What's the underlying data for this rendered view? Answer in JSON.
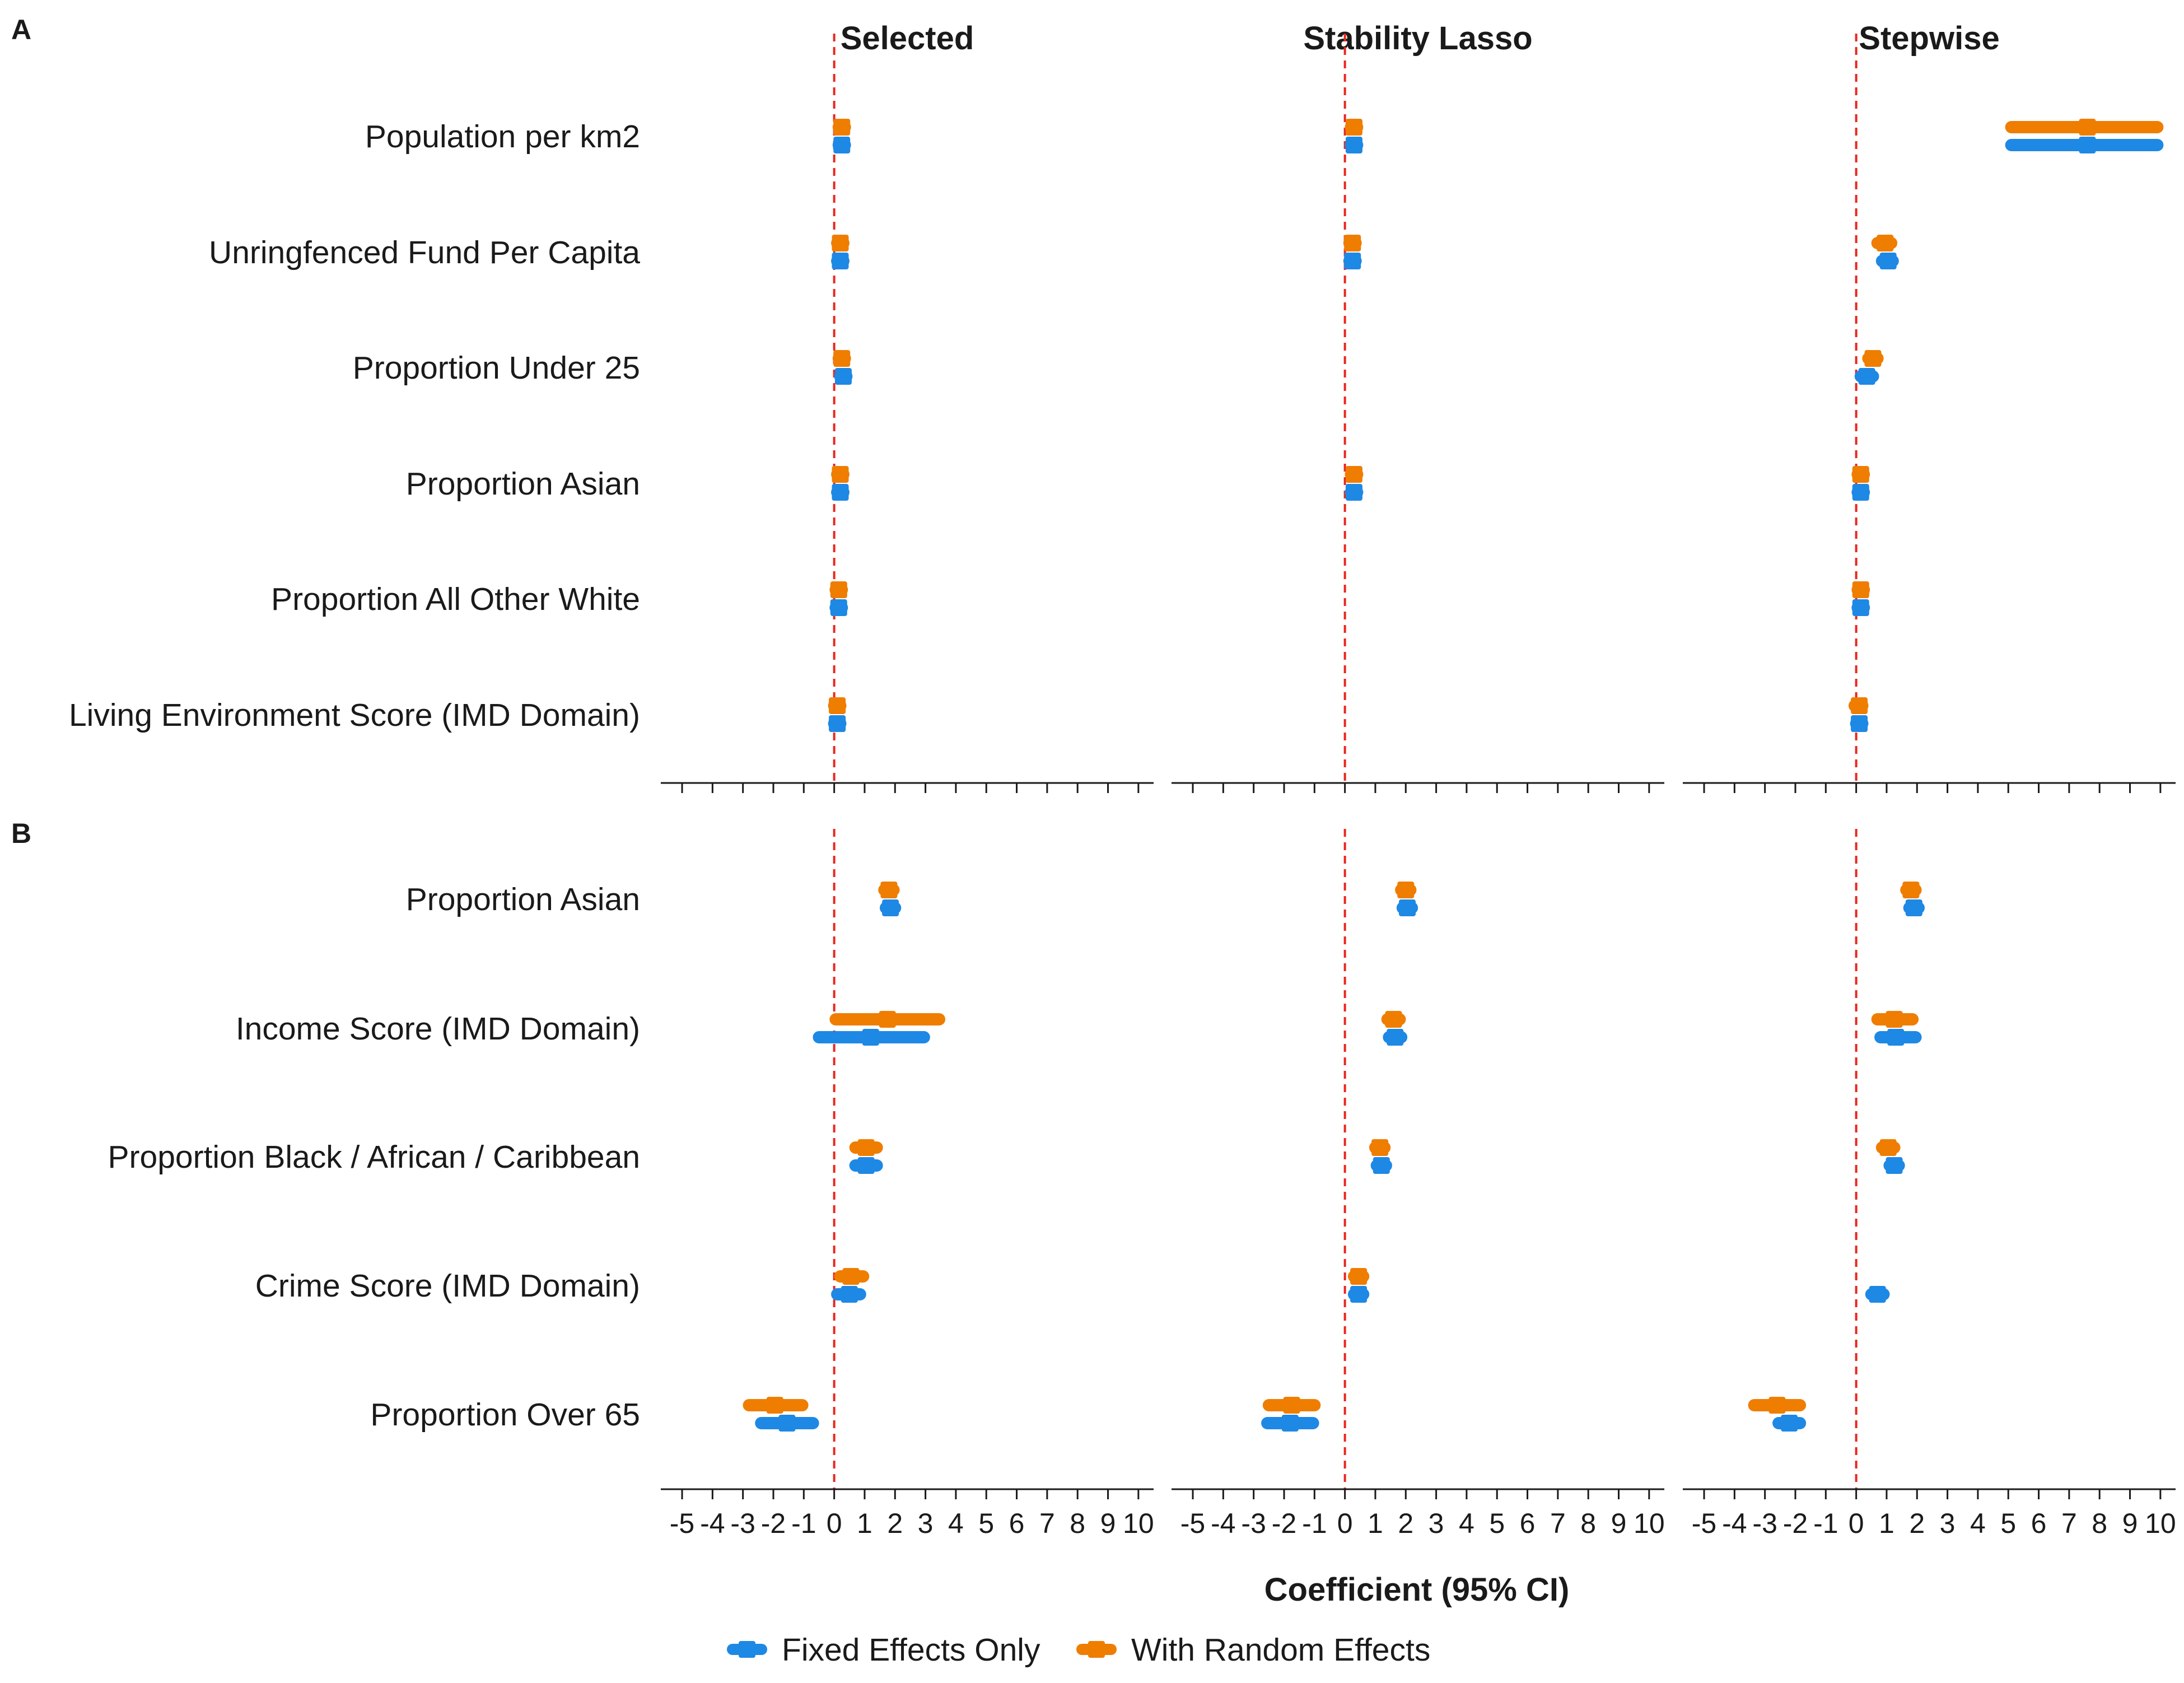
{
  "chart_data": {
    "type": "forest",
    "title": "",
    "xlabel": "Coefficient (95% CI)",
    "xlim": [
      -5.7,
      10.5
    ],
    "x_ticks": [
      -5,
      -4,
      -3,
      -2,
      -1,
      0,
      1,
      2,
      3,
      4,
      5,
      6,
      7,
      8,
      9,
      10
    ],
    "x_tick_labels": [
      "-5",
      "-4",
      "-3",
      "-2",
      "-1",
      "0",
      "1",
      "2",
      "3",
      "4",
      "5",
      "6",
      "7",
      "8",
      "9",
      "10"
    ],
    "reference_line": 0,
    "columns": [
      "Selected",
      "Stability Lasso",
      "Stepwise"
    ],
    "series": [
      {
        "key": "fixed",
        "name": "Fixed Effects Only",
        "color": "#1e88e5"
      },
      {
        "key": "random",
        "name": "With Random Effects",
        "color": "#ef7d00"
      }
    ],
    "panels": [
      {
        "tag": "A",
        "rows": [
          {
            "label": "Population per km2",
            "values": {
              "Selected": {
                "fixed": [
                  0.25,
                  0.15,
                  0.35
                ],
                "random": [
                  0.25,
                  0.15,
                  0.35
                ]
              },
              "Stability Lasso": {
                "fixed": [
                  0.3,
                  0.2,
                  0.4
                ],
                "random": [
                  0.3,
                  0.2,
                  0.4
                ]
              },
              "Stepwise": {
                "fixed": [
                  7.6,
                  5.1,
                  9.9
                ],
                "random": [
                  7.6,
                  5.1,
                  9.9
                ]
              }
            }
          },
          {
            "label": "Unringfenced Fund Per Capita",
            "values": {
              "Selected": {
                "fixed": [
                  0.2,
                  0.1,
                  0.3
                ],
                "random": [
                  0.2,
                  0.1,
                  0.3
                ]
              },
              "Stability Lasso": {
                "fixed": [
                  0.25,
                  0.15,
                  0.35
                ],
                "random": [
                  0.25,
                  0.15,
                  0.35
                ]
              },
              "Stepwise": {
                "fixed": [
                  1.05,
                  0.85,
                  1.2
                ],
                "random": [
                  0.95,
                  0.7,
                  1.15
                ]
              }
            }
          },
          {
            "label": "Proportion Under 25",
            "values": {
              "Selected": {
                "fixed": [
                  0.3,
                  0.2,
                  0.4
                ],
                "random": [
                  0.25,
                  0.15,
                  0.35
                ]
              },
              "Stability Lasso": {
                "fixed": null,
                "random": null
              },
              "Stepwise": {
                "fixed": [
                  0.35,
                  0.15,
                  0.55
                ],
                "random": [
                  0.55,
                  0.4,
                  0.7
                ]
              }
            }
          },
          {
            "label": "Proportion Asian",
            "values": {
              "Selected": {
                "fixed": [
                  0.2,
                  0.1,
                  0.3
                ],
                "random": [
                  0.2,
                  0.1,
                  0.3
                ]
              },
              "Stability Lasso": {
                "fixed": [
                  0.3,
                  0.2,
                  0.4
                ],
                "random": [
                  0.3,
                  0.2,
                  0.4
                ]
              },
              "Stepwise": {
                "fixed": [
                  0.15,
                  0.05,
                  0.25
                ],
                "random": [
                  0.15,
                  0.05,
                  0.25
                ]
              }
            }
          },
          {
            "label": "Proportion All Other White",
            "values": {
              "Selected": {
                "fixed": [
                  0.15,
                  0.05,
                  0.25
                ],
                "random": [
                  0.15,
                  0.05,
                  0.25
                ]
              },
              "Stability Lasso": {
                "fixed": null,
                "random": null
              },
              "Stepwise": {
                "fixed": [
                  0.15,
                  0.05,
                  0.25
                ],
                "random": [
                  0.15,
                  0.05,
                  0.25
                ]
              }
            }
          },
          {
            "label": "Living Environment Score (IMD Domain)",
            "values": {
              "Selected": {
                "fixed": [
                  0.1,
                  0.0,
                  0.2
                ],
                "random": [
                  0.1,
                  0.0,
                  0.2
                ]
              },
              "Stability Lasso": {
                "fixed": null,
                "random": null
              },
              "Stepwise": {
                "fixed": [
                  0.1,
                  0.0,
                  0.2
                ],
                "random": [
                  0.1,
                  -0.05,
                  0.2
                ]
              }
            }
          }
        ]
      },
      {
        "tag": "B",
        "rows": [
          {
            "label": "Proportion Asian",
            "values": {
              "Selected": {
                "fixed": [
                  1.85,
                  1.7,
                  2.0
                ],
                "random": [
                  1.8,
                  1.65,
                  1.95
                ]
              },
              "Stability Lasso": {
                "fixed": [
                  2.05,
                  1.9,
                  2.2
                ],
                "random": [
                  2.0,
                  1.85,
                  2.15
                ]
              },
              "Stepwise": {
                "fixed": [
                  1.9,
                  1.75,
                  2.05
                ],
                "random": [
                  1.8,
                  1.65,
                  1.95
                ]
              }
            }
          },
          {
            "label": "Income Score (IMD Domain)",
            "values": {
              "Selected": {
                "fixed": [
                  1.2,
                  -0.5,
                  2.95
                ],
                "random": [
                  1.75,
                  0.05,
                  3.45
                ]
              },
              "Stability Lasso": {
                "fixed": [
                  1.65,
                  1.45,
                  1.85
                ],
                "random": [
                  1.6,
                  1.4,
                  1.8
                ]
              },
              "Stepwise": {
                "fixed": [
                  1.3,
                  0.8,
                  1.95
                ],
                "random": [
                  1.25,
                  0.7,
                  1.85
                ]
              }
            }
          },
          {
            "label": "Proportion Black / African / Caribbean",
            "values": {
              "Selected": {
                "fixed": [
                  1.05,
                  0.7,
                  1.4
                ],
                "random": [
                  1.05,
                  0.7,
                  1.4
                ]
              },
              "Stability Lasso": {
                "fixed": [
                  1.2,
                  1.05,
                  1.35
                ],
                "random": [
                  1.15,
                  1.0,
                  1.3
                ]
              },
              "Stepwise": {
                "fixed": [
                  1.25,
                  1.1,
                  1.4
                ],
                "random": [
                  1.05,
                  0.85,
                  1.25
                ]
              }
            }
          },
          {
            "label": "Crime Score (IMD Domain)",
            "values": {
              "Selected": {
                "fixed": [
                  0.5,
                  0.1,
                  0.85
                ],
                "random": [
                  0.55,
                  0.2,
                  0.95
                ]
              },
              "Stability Lasso": {
                "fixed": [
                  0.45,
                  0.3,
                  0.6
                ],
                "random": [
                  0.45,
                  0.3,
                  0.6
                ]
              },
              "Stepwise": {
                "fixed": [
                  0.7,
                  0.5,
                  0.9
                ],
                "random": null
              }
            }
          },
          {
            "label": "Proportion Over 65",
            "values": {
              "Selected": {
                "fixed": [
                  -1.55,
                  -2.4,
                  -0.7
                ],
                "random": [
                  -1.95,
                  -2.8,
                  -1.05
                ]
              },
              "Stability Lasso": {
                "fixed": [
                  -1.8,
                  -2.55,
                  -1.05
                ],
                "random": [
                  -1.75,
                  -2.5,
                  -1.0
                ]
              },
              "Stepwise": {
                "fixed": [
                  -2.2,
                  -2.55,
                  -1.85
                ],
                "random": [
                  -2.6,
                  -3.35,
                  -1.85
                ]
              }
            }
          }
        ]
      }
    ],
    "legend": {
      "position": "bottom"
    }
  }
}
